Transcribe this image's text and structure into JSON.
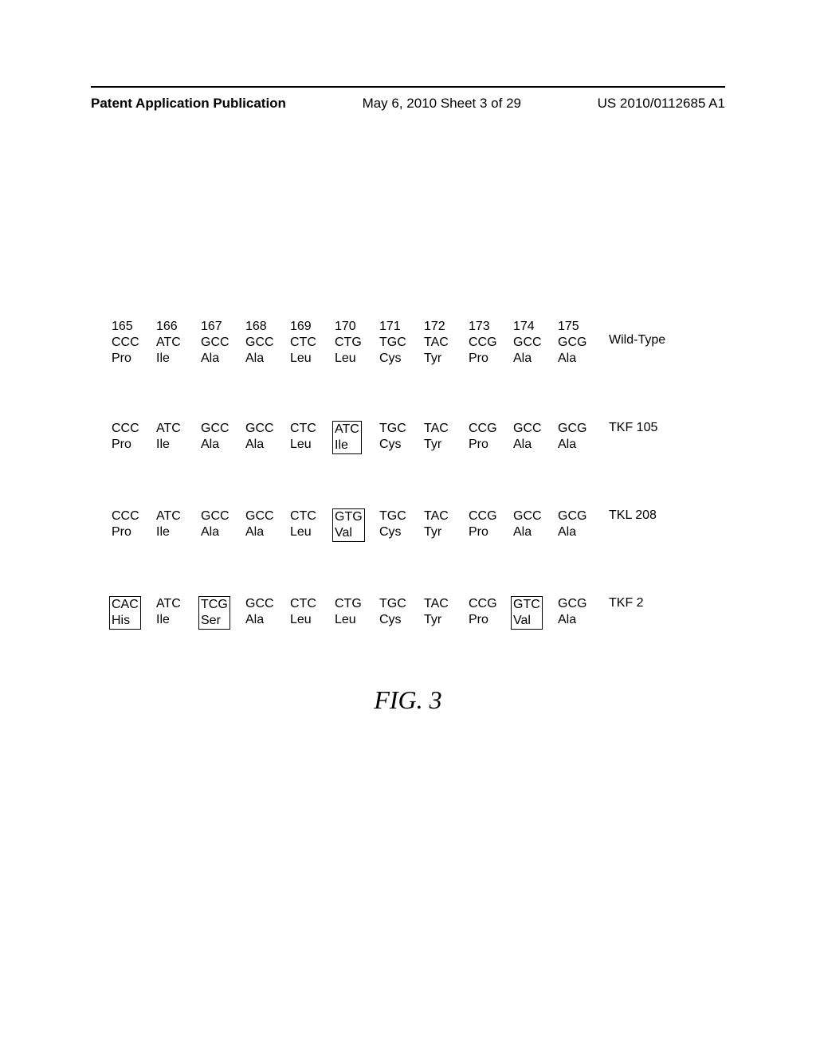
{
  "header": {
    "left": "Patent Application Publication",
    "center": "May 6, 2010  Sheet 3 of 29",
    "right": "US 2010/0112685 A1"
  },
  "positions": [
    "165",
    "166",
    "167",
    "168",
    "169",
    "170",
    "171",
    "172",
    "173",
    "174",
    "175"
  ],
  "sequences": [
    {
      "label": "Wild-Type",
      "showPositions": true,
      "codons": [
        "CCC",
        "ATC",
        "GCC",
        "GCC",
        "CTC",
        "CTG",
        "TGC",
        "TAC",
        "CCG",
        "GCC",
        "GCG"
      ],
      "aas": [
        "Pro",
        "Ile",
        "Ala",
        "Ala",
        "Leu",
        "Leu",
        "Cys",
        "Tyr",
        "Pro",
        "Ala",
        "Ala"
      ],
      "boxed": []
    },
    {
      "label": "TKF 105",
      "showPositions": false,
      "codons": [
        "CCC",
        "ATC",
        "GCC",
        "GCC",
        "CTC",
        "ATC",
        "TGC",
        "TAC",
        "CCG",
        "GCC",
        "GCG"
      ],
      "aas": [
        "Pro",
        "Ile",
        "Ala",
        "Ala",
        "Leu",
        "Ile",
        "Cys",
        "Tyr",
        "Pro",
        "Ala",
        "Ala"
      ],
      "boxed": [
        5
      ]
    },
    {
      "label": "TKL 208",
      "showPositions": false,
      "codons": [
        "CCC",
        "ATC",
        "GCC",
        "GCC",
        "CTC",
        "GTG",
        "TGC",
        "TAC",
        "CCG",
        "GCC",
        "GCG"
      ],
      "aas": [
        "Pro",
        "Ile",
        "Ala",
        "Ala",
        "Leu",
        "Val",
        "Cys",
        "Tyr",
        "Pro",
        "Ala",
        "Ala"
      ],
      "boxed": [
        5
      ]
    },
    {
      "label": "TKF 2",
      "showPositions": false,
      "codons": [
        "CAC",
        "ATC",
        "TCG",
        "GCC",
        "CTC",
        "CTG",
        "TGC",
        "TAC",
        "CCG",
        "GTC",
        "GCG"
      ],
      "aas": [
        "His",
        "Ile",
        "Ser",
        "Ala",
        "Leu",
        "Leu",
        "Cys",
        "Tyr",
        "Pro",
        "Val",
        "Ala"
      ],
      "boxed": [
        0,
        2,
        9
      ]
    }
  ],
  "figureLabel": "FIG. 3"
}
